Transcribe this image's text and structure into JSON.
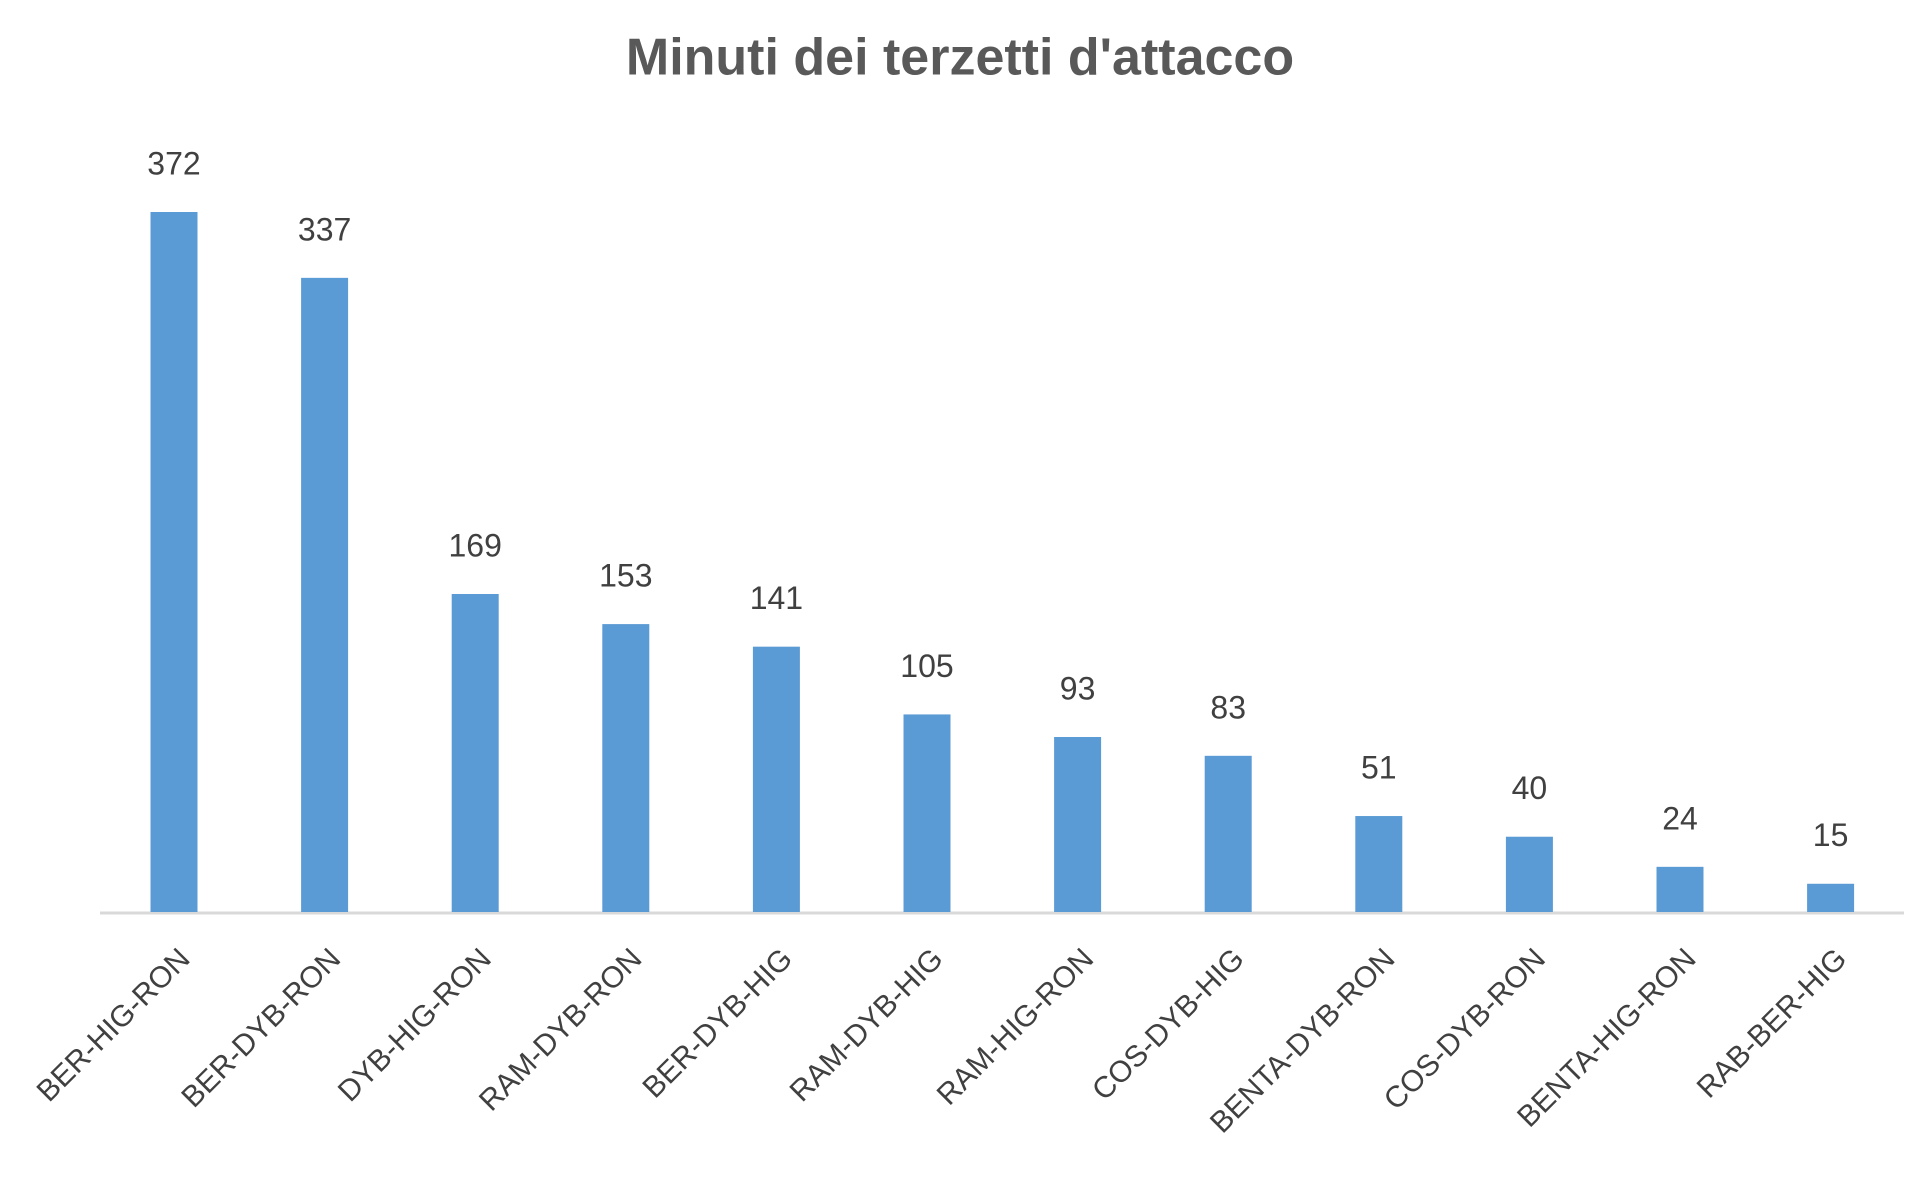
{
  "chart_data": {
    "type": "bar",
    "title": "Minuti dei terzetti d'attacco",
    "categories": [
      "BER-HIG-RON",
      "BER-DYB-RON",
      "DYB-HIG-RON",
      "RAM-DYB-RON",
      "BER-DYB-HIG",
      "RAM-DYB-HIG",
      "RAM-HIG-RON",
      "COS-DYB-HIG",
      "BENTA-DYB-RON",
      "COS-DYB-RON",
      "BENTA-HIG-RON",
      "RAB-BER-HIG"
    ],
    "values": [
      372,
      337,
      169,
      153,
      141,
      105,
      93,
      83,
      51,
      40,
      24,
      15
    ],
    "color": "#5b9bd5"
  }
}
